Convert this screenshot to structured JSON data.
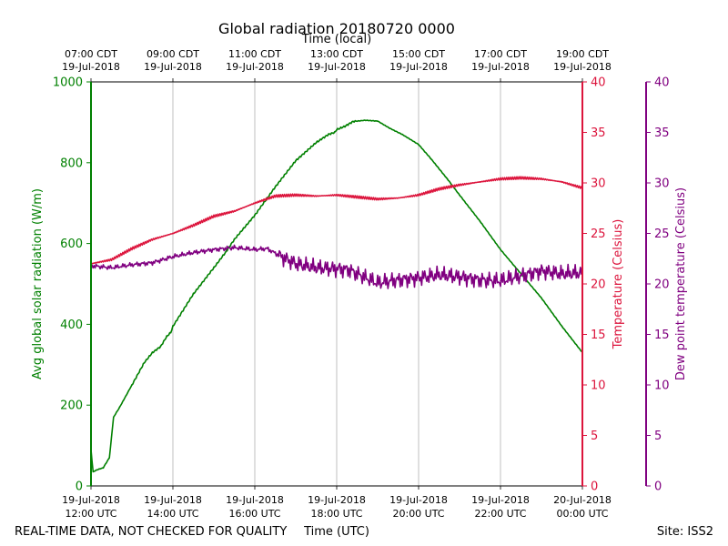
{
  "chart_data": {
    "type": "line",
    "title": "Global radiation 20180720 0000",
    "top_axis_label": "Time (local)",
    "xlabel": "Time (UTC)",
    "footer_left": "REAL-TIME DATA, NOT CHECKED FOR QUALITY",
    "footer_right": "Site: ISS2",
    "x_range_hours": [
      12,
      24
    ],
    "x_ticks": [
      {
        "hour": 12,
        "utc": [
          "19-Jul-2018",
          "12:00 UTC"
        ],
        "local": [
          "07:00 CDT",
          "19-Jul-2018"
        ]
      },
      {
        "hour": 14,
        "utc": [
          "19-Jul-2018",
          "14:00 UTC"
        ],
        "local": [
          "09:00 CDT",
          "19-Jul-2018"
        ]
      },
      {
        "hour": 16,
        "utc": [
          "19-Jul-2018",
          "16:00 UTC"
        ],
        "local": [
          "11:00 CDT",
          "19-Jul-2018"
        ]
      },
      {
        "hour": 18,
        "utc": [
          "19-Jul-2018",
          "18:00 UTC"
        ],
        "local": [
          "13:00 CDT",
          "19-Jul-2018"
        ]
      },
      {
        "hour": 20,
        "utc": [
          "19-Jul-2018",
          "20:00 UTC"
        ],
        "local": [
          "15:00 CDT",
          "19-Jul-2018"
        ]
      },
      {
        "hour": 22,
        "utc": [
          "19-Jul-2018",
          "22:00 UTC"
        ],
        "local": [
          "17:00 CDT",
          "19-Jul-2018"
        ]
      },
      {
        "hour": 24,
        "utc": [
          "20-Jul-2018",
          "00:00 UTC"
        ],
        "local": [
          "19:00 CDT",
          "19-Jul-2018"
        ]
      }
    ],
    "vertical_grid": true,
    "axes": {
      "radiation": {
        "label": "Avg global solar radiation (W/m)",
        "range": [
          0,
          1000
        ],
        "ticks": [
          0,
          200,
          400,
          600,
          800,
          1000
        ],
        "color": "#008000"
      },
      "temperature": {
        "label": "Temperature (Celsius)",
        "range": [
          0,
          40
        ],
        "ticks": [
          0,
          5,
          10,
          15,
          20,
          25,
          30,
          35,
          40
        ],
        "color": "#dc143c"
      },
      "dewpoint": {
        "label": "Dew point temperature (Celsius)",
        "range": [
          0,
          40
        ],
        "ticks": [
          0,
          5,
          10,
          15,
          20,
          25,
          30,
          35,
          40
        ],
        "color": "#800080"
      }
    },
    "series": [
      {
        "name": "Avg global solar radiation",
        "axis": "radiation",
        "color": "#008000",
        "x": [
          12.0,
          12.05,
          12.15,
          12.3,
          12.45,
          12.55,
          12.7,
          13.0,
          13.3,
          13.5,
          13.7,
          13.85,
          13.95,
          14.0,
          14.5,
          15.0,
          15.3,
          15.5,
          16.0,
          16.5,
          17.0,
          17.5,
          17.8,
          17.95,
          18.0,
          18.2,
          18.4,
          18.7,
          19.0,
          19.3,
          19.6,
          20.0,
          20.3,
          20.7,
          21.0,
          21.5,
          22.0,
          22.5,
          23.0,
          23.5,
          24.0
        ],
        "values": [
          90,
          35,
          40,
          45,
          70,
          170,
          195,
          250,
          305,
          330,
          345,
          370,
          380,
          395,
          475,
          540,
          580,
          610,
          670,
          740,
          805,
          850,
          870,
          875,
          882,
          890,
          902,
          905,
          903,
          885,
          870,
          845,
          810,
          760,
          720,
          655,
          585,
          525,
          465,
          395,
          330
        ]
      },
      {
        "name": "Temperature",
        "axis": "temperature",
        "color": "#dc143c",
        "x": [
          12.0,
          12.5,
          13.0,
          13.5,
          14.0,
          14.5,
          15.0,
          15.5,
          16.0,
          16.5,
          17.0,
          17.5,
          18.0,
          18.5,
          19.0,
          19.5,
          20.0,
          20.5,
          21.0,
          21.5,
          22.0,
          22.5,
          23.0,
          23.5,
          24.0
        ],
        "values": [
          22.0,
          22.4,
          23.5,
          24.4,
          25.0,
          25.8,
          26.7,
          27.2,
          28.0,
          28.7,
          28.8,
          28.7,
          28.8,
          28.6,
          28.4,
          28.5,
          28.8,
          29.4,
          29.8,
          30.1,
          30.4,
          30.5,
          30.4,
          30.1,
          29.5
        ]
      },
      {
        "name": "Dew point temperature",
        "axis": "dewpoint",
        "color": "#800080",
        "x": [
          12.0,
          12.5,
          13.0,
          13.5,
          14.0,
          14.5,
          15.0,
          15.5,
          16.0,
          16.3,
          16.6,
          17.0,
          17.5,
          18.0,
          18.3,
          18.6,
          19.0,
          19.5,
          20.0,
          20.5,
          21.0,
          21.5,
          22.0,
          22.5,
          23.0,
          23.5,
          24.0
        ],
        "values": [
          21.8,
          21.6,
          21.9,
          22.1,
          22.7,
          23.1,
          23.4,
          23.6,
          23.4,
          23.5,
          22.8,
          22.0,
          21.6,
          21.5,
          21.4,
          20.8,
          20.1,
          20.4,
          20.6,
          20.9,
          20.7,
          20.4,
          20.3,
          20.8,
          21.3,
          21.0,
          21.1
        ]
      }
    ]
  }
}
